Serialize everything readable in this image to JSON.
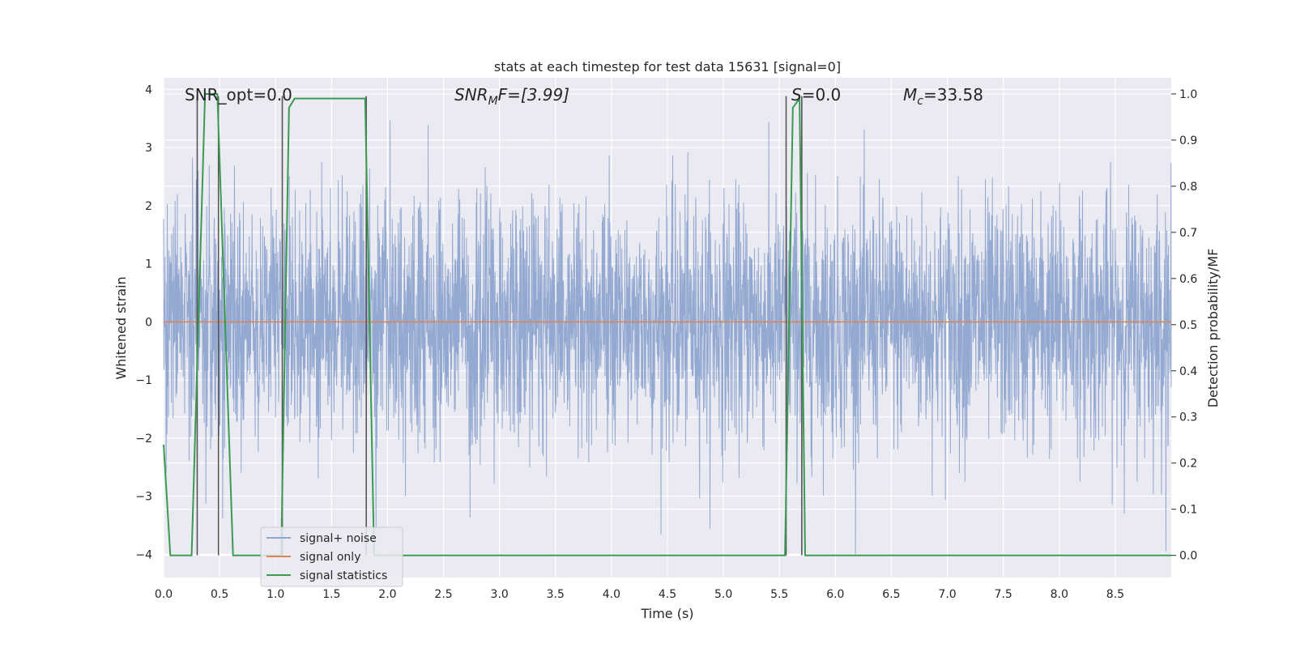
{
  "chart_data": {
    "type": "line",
    "title": "stats at each timestep for test data 15631 [signal=0]",
    "xlabel": "Time (s)",
    "ylabel_left": "Whitened strain",
    "ylabel_right": "Detection probability/MF",
    "xlim": [
      0.0,
      9.0
    ],
    "ylim_left": [
      -4.4,
      4.2
    ],
    "ylim_right": [
      -0.048,
      1.035
    ],
    "xticks": [
      "0.0",
      "0.5",
      "1.0",
      "1.5",
      "2.0",
      "2.5",
      "3.0",
      "3.5",
      "4.0",
      "4.5",
      "5.0",
      "5.5",
      "6.0",
      "6.5",
      "7.0",
      "7.5",
      "8.0",
      "8.5"
    ],
    "yticks_left": [
      "4",
      "3",
      "2",
      "1",
      "0",
      "−1",
      "−2",
      "−3",
      "−4"
    ],
    "yticks_right": [
      "1.0",
      "0.9",
      "0.8",
      "0.7",
      "0.6",
      "0.5",
      "0.4",
      "0.3",
      "0.2",
      "0.1",
      "0.0"
    ],
    "annotations": {
      "snr_opt": "SNR_opt=0.0",
      "snr_mf_base": "SNR",
      "snr_mf_sub": "M",
      "snr_mf_rest": "F=[3.99]",
      "s_base": "S",
      "s_rest": "=0.0",
      "mc_base": "M",
      "mc_sub": "c",
      "mc_rest": "=33.58"
    },
    "legend": {
      "position": "lower-left",
      "entries": [
        "signal+ noise",
        "signal only",
        "signal statistics"
      ]
    },
    "series": [
      {
        "name": "signal+ noise",
        "color": "#8fa5cf",
        "description": "whitened strain noise, amplitude about ±2 with peaks near ±4"
      },
      {
        "name": "signal only",
        "color": "#dd8452",
        "values_constant": 0.0
      },
      {
        "name": "signal statistics",
        "color": "#3a9a4f",
        "x": [
          0.0,
          0.06,
          0.25,
          0.37,
          0.48,
          0.62,
          1.05,
          1.12,
          1.17,
          1.8,
          1.88,
          1.95,
          5.55,
          5.62,
          5.68,
          5.73,
          5.8,
          9.0
        ],
        "values": [
          0.24,
          0.0,
          0.0,
          1.0,
          1.0,
          0.0,
          0.0,
          0.97,
          0.99,
          0.99,
          0.0,
          0.0,
          0.0,
          0.97,
          0.99,
          0.0,
          0.0,
          0.0
        ]
      }
    ],
    "vlines": [
      0.3,
      0.49,
      1.06,
      1.81,
      5.56,
      5.7
    ]
  }
}
